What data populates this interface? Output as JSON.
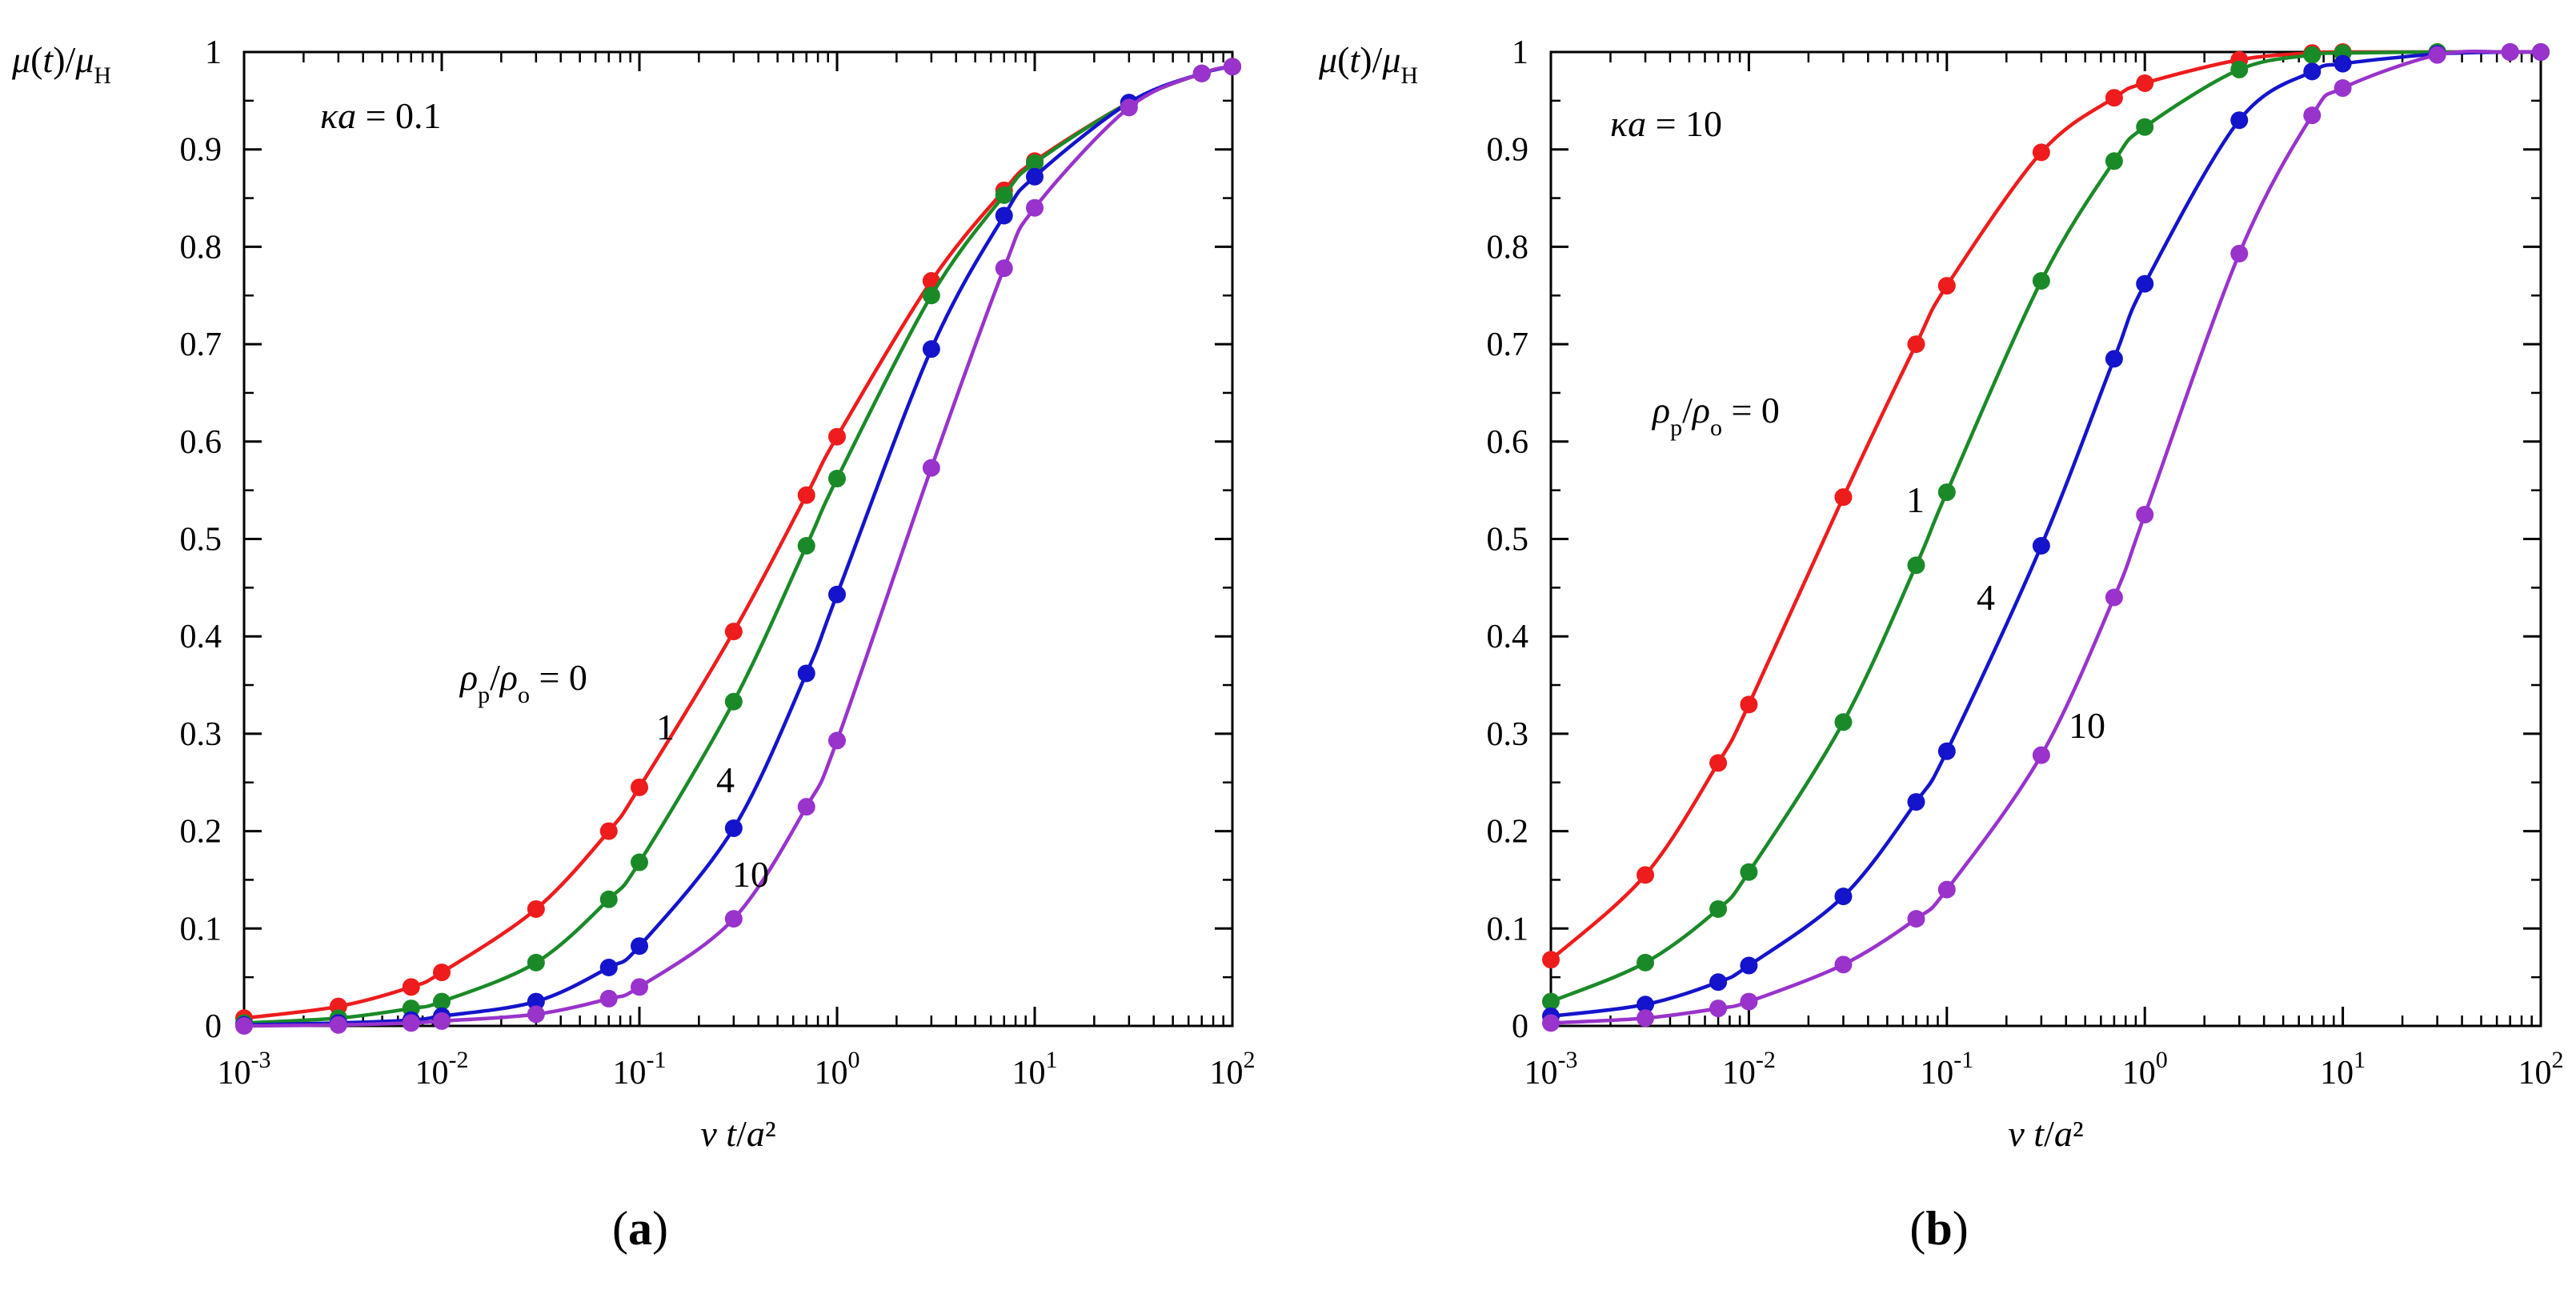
{
  "chart_data": [
    {
      "type": "line",
      "panel_label": "a",
      "ka": "0.1",
      "ylabel": "μ(t)/μ_H",
      "xlabel": "νt/a²",
      "xscale": "log",
      "xlim": [
        0.001,
        100
      ],
      "ylim": [
        0,
        1
      ],
      "x_ticks": [
        {
          "base": "10",
          "exp": "-3"
        },
        {
          "base": "10",
          "exp": "-2"
        },
        {
          "base": "10",
          "exp": "-1"
        },
        {
          "base": "10",
          "exp": "0"
        },
        {
          "base": "10",
          "exp": "1"
        },
        {
          "base": "10",
          "exp": "2"
        }
      ],
      "y_ticks": [
        "0",
        "0.1",
        "0.2",
        "0.3",
        "0.4",
        "0.5",
        "0.6",
        "0.7",
        "0.8",
        "0.9",
        "1"
      ],
      "legend_prefix": "ρp/ρo = ",
      "series": [
        {
          "name": "0",
          "color": "#ee1c1c",
          "x": [
            0.001,
            0.003,
            0.007,
            0.01,
            0.03,
            0.07,
            0.1,
            0.3,
            0.7,
            1,
            3,
            7,
            10,
            30,
            70,
            100
          ],
          "y": [
            0.008,
            0.02,
            0.04,
            0.055,
            0.12,
            0.2,
            0.245,
            0.405,
            0.545,
            0.605,
            0.765,
            0.858,
            0.888,
            0.948,
            0.978,
            0.985
          ]
        },
        {
          "name": "1",
          "color": "#1a8a28",
          "x": [
            0.001,
            0.003,
            0.007,
            0.01,
            0.03,
            0.07,
            0.1,
            0.3,
            0.7,
            1,
            3,
            7,
            10,
            30,
            70,
            100
          ],
          "y": [
            0.003,
            0.008,
            0.018,
            0.025,
            0.065,
            0.13,
            0.168,
            0.333,
            0.493,
            0.562,
            0.75,
            0.853,
            0.886,
            0.948,
            0.978,
            0.985
          ]
        },
        {
          "name": "4",
          "color": "#1414cc",
          "x": [
            0.001,
            0.003,
            0.007,
            0.01,
            0.03,
            0.07,
            0.1,
            0.3,
            0.7,
            1,
            3,
            7,
            10,
            30,
            70,
            100
          ],
          "y": [
            0.001,
            0.003,
            0.006,
            0.01,
            0.025,
            0.06,
            0.082,
            0.203,
            0.362,
            0.443,
            0.695,
            0.832,
            0.872,
            0.948,
            0.978,
            0.985
          ]
        },
        {
          "name": "10",
          "color": "#9933cc",
          "x": [
            0.001,
            0.003,
            0.007,
            0.01,
            0.03,
            0.07,
            0.1,
            0.3,
            0.7,
            1,
            3,
            7,
            10,
            30,
            70,
            100
          ],
          "y": [
            0.0,
            0.001,
            0.003,
            0.005,
            0.012,
            0.028,
            0.04,
            0.11,
            0.225,
            0.293,
            0.573,
            0.778,
            0.84,
            0.943,
            0.978,
            0.985
          ]
        }
      ]
    },
    {
      "type": "line",
      "panel_label": "b",
      "ka": "10",
      "ylabel": "μ(t)/μ_H",
      "xlabel": "νt/a²",
      "xscale": "log",
      "xlim": [
        0.001,
        100
      ],
      "ylim": [
        0,
        1
      ],
      "x_ticks": [
        {
          "base": "10",
          "exp": "-3"
        },
        {
          "base": "10",
          "exp": "-2"
        },
        {
          "base": "10",
          "exp": "-1"
        },
        {
          "base": "10",
          "exp": "0"
        },
        {
          "base": "10",
          "exp": "1"
        },
        {
          "base": "10",
          "exp": "2"
        }
      ],
      "y_ticks": [
        "0",
        "0.1",
        "0.2",
        "0.3",
        "0.4",
        "0.5",
        "0.6",
        "0.7",
        "0.8",
        "0.9",
        "1"
      ],
      "legend_prefix": "ρp/ρo = ",
      "series": [
        {
          "name": "0",
          "color": "#ee1c1c",
          "x": [
            0.001,
            0.003,
            0.007,
            0.01,
            0.03,
            0.07,
            0.1,
            0.3,
            0.7,
            1,
            3,
            7,
            10,
            30,
            70,
            100
          ],
          "y": [
            0.068,
            0.155,
            0.27,
            0.33,
            0.543,
            0.7,
            0.76,
            0.897,
            0.953,
            0.968,
            0.992,
            0.999,
            1.0,
            1.0,
            1.0,
            1.0
          ]
        },
        {
          "name": "1",
          "color": "#1a8a28",
          "x": [
            0.001,
            0.003,
            0.007,
            0.01,
            0.03,
            0.07,
            0.1,
            0.3,
            0.7,
            1,
            3,
            7,
            10,
            30,
            70,
            100
          ],
          "y": [
            0.025,
            0.065,
            0.12,
            0.158,
            0.312,
            0.473,
            0.548,
            0.765,
            0.888,
            0.923,
            0.982,
            0.997,
            0.999,
            1.0,
            1.0,
            1.0
          ]
        },
        {
          "name": "4",
          "color": "#1414cc",
          "x": [
            0.001,
            0.003,
            0.007,
            0.01,
            0.03,
            0.07,
            0.1,
            0.3,
            0.7,
            1,
            3,
            7,
            10,
            30,
            70,
            100
          ],
          "y": [
            0.01,
            0.022,
            0.045,
            0.062,
            0.133,
            0.23,
            0.282,
            0.493,
            0.685,
            0.762,
            0.93,
            0.98,
            0.988,
            0.998,
            1.0,
            1.0
          ]
        },
        {
          "name": "10",
          "color": "#9933cc",
          "x": [
            0.001,
            0.003,
            0.007,
            0.01,
            0.03,
            0.07,
            0.1,
            0.3,
            0.7,
            1,
            3,
            7,
            10,
            30,
            70,
            100
          ],
          "y": [
            0.003,
            0.008,
            0.018,
            0.025,
            0.063,
            0.11,
            0.14,
            0.278,
            0.44,
            0.525,
            0.793,
            0.935,
            0.963,
            0.997,
            1.0,
            1.0
          ]
        }
      ]
    }
  ]
}
